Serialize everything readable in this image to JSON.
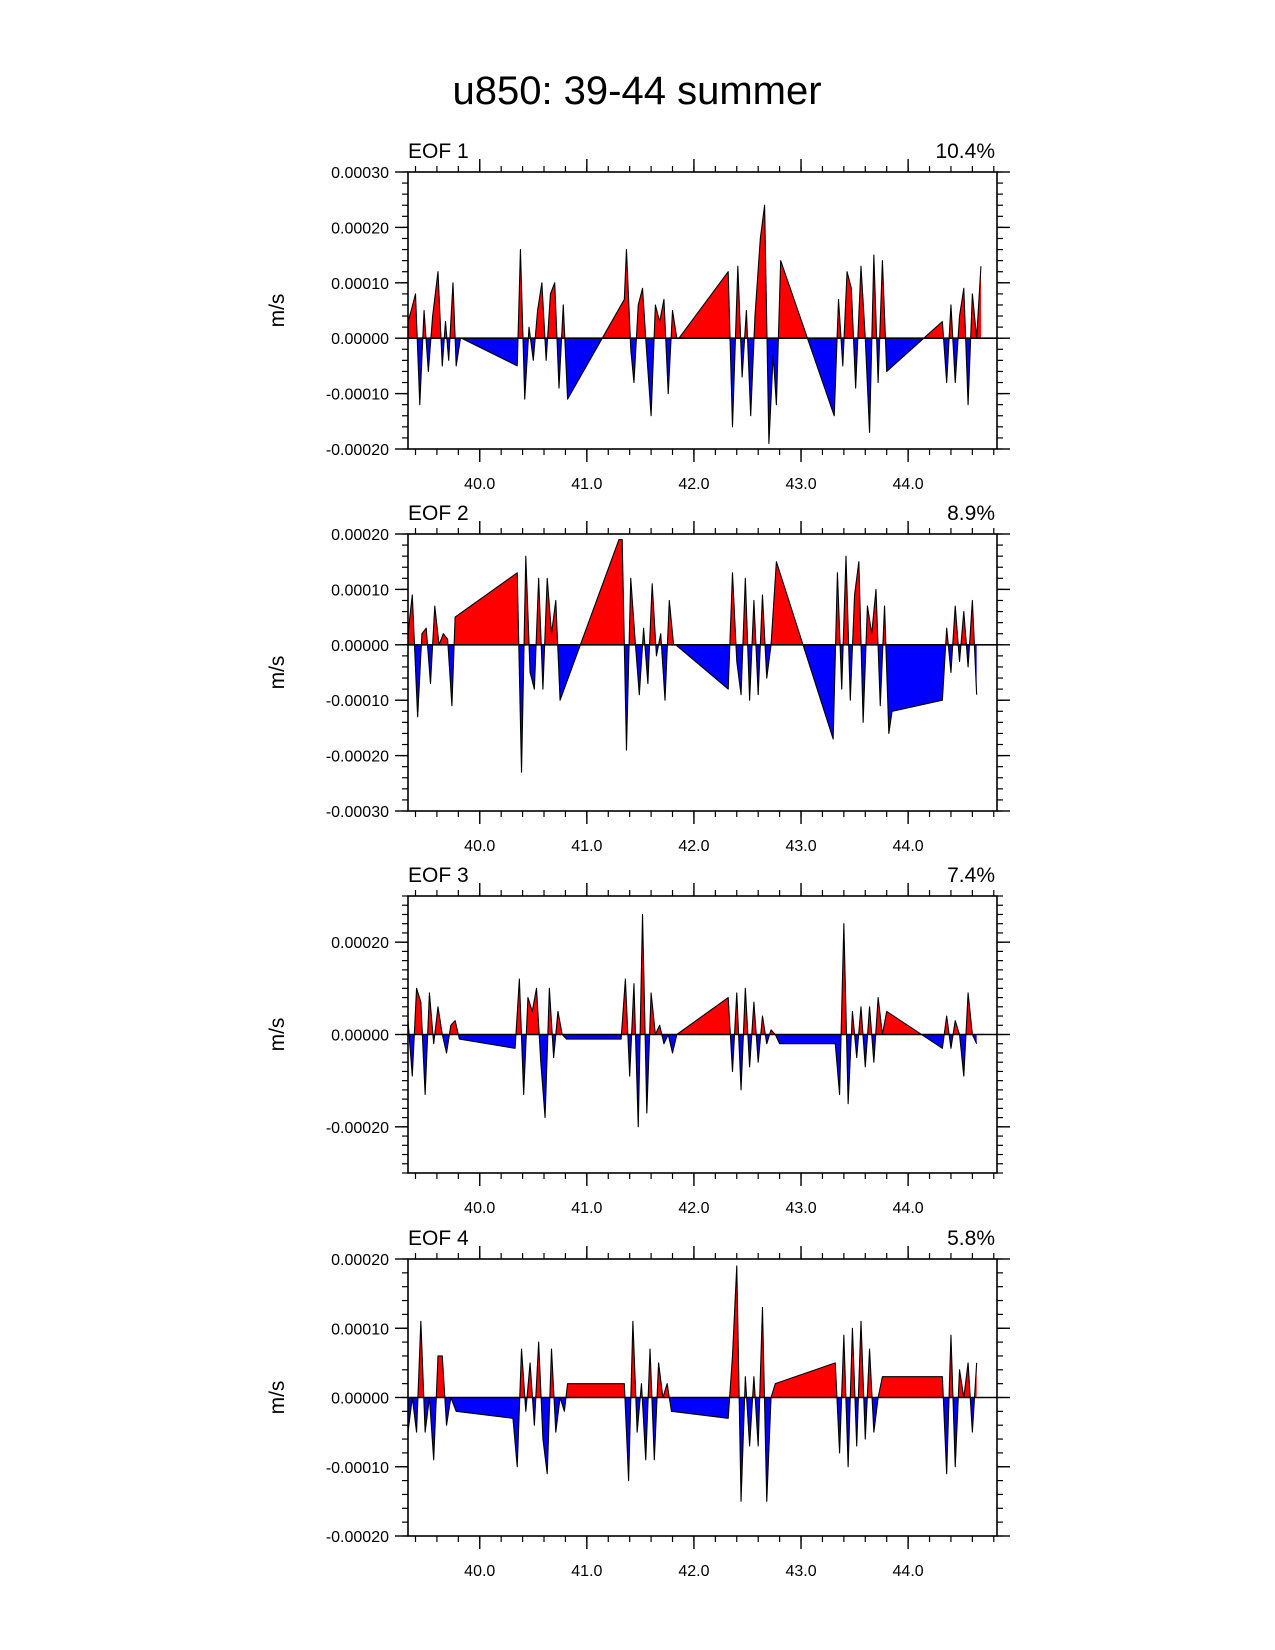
{
  "figure": {
    "title": "u850: 39-44 summer",
    "colors": {
      "positive": "#ff0000",
      "negative": "#0000ff",
      "outline": "#000000"
    }
  },
  "chart_data": [
    {
      "type": "area",
      "title": "EOF 1",
      "variance": "10.4%",
      "xlabel": "",
      "ylabel": "m/s",
      "xlim": [
        39.33,
        44.83
      ],
      "ylim": [
        -0.0002,
        0.0003
      ],
      "x_ticks": [
        40.0,
        41.0,
        42.0,
        43.0,
        44.0
      ],
      "x_tick_labels": [
        "40.0",
        "41.0",
        "42.0",
        "43.0",
        "44.0"
      ],
      "y_ticks": [
        -0.0002,
        -0.0001,
        0.0,
        0.0001,
        0.0002,
        0.0003
      ],
      "y_tick_labels": [
        "-0.00020",
        "-0.00010",
        "0.00000",
        "0.00010",
        "0.00020",
        "0.00030"
      ],
      "fill_above_zero": "red",
      "fill_below_zero": "blue",
      "points": [
        [
          39.33,
          3e-05
        ],
        [
          39.36,
          5e-05
        ],
        [
          39.4,
          8e-05
        ],
        [
          39.44,
          -0.00012
        ],
        [
          39.48,
          5e-05
        ],
        [
          39.52,
          -6e-05
        ],
        [
          39.56,
          4e-05
        ],
        [
          39.61,
          0.00012
        ],
        [
          39.65,
          -5e-05
        ],
        [
          39.68,
          3e-05
        ],
        [
          39.71,
          -4e-05
        ],
        [
          39.75,
          0.0001
        ],
        [
          39.78,
          -5e-05
        ],
        [
          39.82,
          0.0
        ],
        [
          39.83,
          0.0
        ],
        [
          40.35,
          -5e-05
        ],
        [
          40.38,
          0.00016
        ],
        [
          40.42,
          -0.00011
        ],
        [
          40.46,
          2e-05
        ],
        [
          40.5,
          -4e-05
        ],
        [
          40.54,
          5e-05
        ],
        [
          40.58,
          0.0001
        ],
        [
          40.62,
          -4e-05
        ],
        [
          40.66,
          8e-05
        ],
        [
          40.7,
          0.0001
        ],
        [
          40.74,
          -9e-05
        ],
        [
          40.78,
          6e-05
        ],
        [
          40.82,
          -0.00011
        ],
        [
          41.35,
          7e-05
        ],
        [
          41.37,
          0.00016
        ],
        [
          41.41,
          -2e-05
        ],
        [
          41.44,
          -8e-05
        ],
        [
          41.48,
          6e-05
        ],
        [
          41.52,
          9e-05
        ],
        [
          41.56,
          -3e-05
        ],
        [
          41.6,
          -0.00014
        ],
        [
          41.64,
          6e-05
        ],
        [
          41.68,
          3e-05
        ],
        [
          41.72,
          7e-05
        ],
        [
          41.76,
          -0.0001
        ],
        [
          41.8,
          5e-05
        ],
        [
          41.84,
          0.0
        ],
        [
          41.86,
          0.0
        ],
        [
          42.32,
          0.00012
        ],
        [
          42.36,
          -0.00016
        ],
        [
          42.41,
          0.00013
        ],
        [
          42.45,
          -7e-05
        ],
        [
          42.49,
          5e-05
        ],
        [
          42.53,
          -0.00014
        ],
        [
          42.57,
          4e-05
        ],
        [
          42.62,
          0.00018
        ],
        [
          42.66,
          0.00024
        ],
        [
          42.7,
          -0.00019
        ],
        [
          42.74,
          -3e-05
        ],
        [
          42.77,
          -0.00012
        ],
        [
          42.81,
          0.00014
        ],
        [
          43.31,
          -0.00014
        ],
        [
          43.35,
          7e-05
        ],
        [
          43.39,
          -5e-05
        ],
        [
          43.43,
          0.00012
        ],
        [
          43.47,
          9e-05
        ],
        [
          43.51,
          -9e-05
        ],
        [
          43.56,
          0.00013
        ],
        [
          43.6,
          0.0
        ],
        [
          43.64,
          -0.00017
        ],
        [
          43.68,
          0.00015
        ],
        [
          43.72,
          -8e-05
        ],
        [
          43.76,
          0.00014
        ],
        [
          43.8,
          -6e-05
        ],
        [
          44.32,
          3e-05
        ],
        [
          44.36,
          -8e-05
        ],
        [
          44.4,
          6e-05
        ],
        [
          44.44,
          -8e-05
        ],
        [
          44.48,
          4e-05
        ],
        [
          44.52,
          9e-05
        ],
        [
          44.56,
          -0.00012
        ],
        [
          44.6,
          8e-05
        ],
        [
          44.64,
          0.0
        ],
        [
          44.68,
          0.00013
        ]
      ]
    },
    {
      "type": "area",
      "title": "EOF 2",
      "variance": "8.9%",
      "xlabel": "",
      "ylabel": "m/s",
      "xlim": [
        39.33,
        44.83
      ],
      "ylim": [
        -0.0003,
        0.0002
      ],
      "x_ticks": [
        40.0,
        41.0,
        42.0,
        43.0,
        44.0
      ],
      "x_tick_labels": [
        "40.0",
        "41.0",
        "42.0",
        "43.0",
        "44.0"
      ],
      "y_ticks": [
        -0.0003,
        -0.0002,
        -0.0001,
        0.0,
        0.0001,
        0.0002
      ],
      "y_tick_labels": [
        "-0.00030",
        "-0.00020",
        "-0.00010",
        "0.00000",
        "0.00010",
        "0.00020"
      ],
      "fill_above_zero": "red",
      "fill_below_zero": "blue",
      "points": [
        [
          39.33,
          2e-05
        ],
        [
          39.37,
          9e-05
        ],
        [
          39.42,
          -0.00013
        ],
        [
          39.46,
          2e-05
        ],
        [
          39.5,
          3e-05
        ],
        [
          39.54,
          -7e-05
        ],
        [
          39.58,
          7e-05
        ],
        [
          39.62,
          0.0
        ],
        [
          39.66,
          2e-05
        ],
        [
          39.7,
          1e-05
        ],
        [
          39.74,
          -0.00011
        ],
        [
          39.77,
          5e-05
        ],
        [
          40.35,
          0.00013
        ],
        [
          40.39,
          -0.00023
        ],
        [
          40.43,
          0.00016
        ],
        [
          40.47,
          -5e-05
        ],
        [
          40.51,
          -8e-05
        ],
        [
          40.55,
          0.00012
        ],
        [
          40.59,
          -8e-05
        ],
        [
          40.63,
          0.00012
        ],
        [
          40.67,
          2e-05
        ],
        [
          40.71,
          8e-05
        ],
        [
          40.75,
          -0.0001
        ],
        [
          41.3,
          0.00019
        ],
        [
          41.33,
          0.00019
        ],
        [
          41.37,
          -0.00019
        ],
        [
          41.41,
          0.00012
        ],
        [
          41.45,
          1e-05
        ],
        [
          41.49,
          -9e-05
        ],
        [
          41.53,
          3e-05
        ],
        [
          41.57,
          -7e-05
        ],
        [
          41.61,
          0.00011
        ],
        [
          41.65,
          -2e-05
        ],
        [
          41.69,
          2e-05
        ],
        [
          41.73,
          -0.0001
        ],
        [
          41.77,
          8e-05
        ],
        [
          41.81,
          0.0
        ],
        [
          41.83,
          0.0
        ],
        [
          42.32,
          -8e-05
        ],
        [
          42.36,
          0.00013
        ],
        [
          42.4,
          -3e-05
        ],
        [
          42.44,
          -9e-05
        ],
        [
          42.48,
          0.00012
        ],
        [
          42.52,
          -0.0001
        ],
        [
          42.56,
          8e-05
        ],
        [
          42.6,
          -9e-05
        ],
        [
          42.64,
          9e-05
        ],
        [
          42.68,
          -6e-05
        ],
        [
          42.72,
          0.0
        ],
        [
          42.77,
          0.00015
        ],
        [
          43.3,
          -0.00017
        ],
        [
          43.34,
          0.00013
        ],
        [
          43.38,
          -8e-05
        ],
        [
          43.42,
          0.00016
        ],
        [
          43.46,
          -0.0001
        ],
        [
          43.5,
          9e-05
        ],
        [
          43.54,
          0.00015
        ],
        [
          43.58,
          -0.00014
        ],
        [
          43.62,
          7e-05
        ],
        [
          43.66,
          2e-05
        ],
        [
          43.7,
          0.0001
        ],
        [
          43.74,
          -0.00011
        ],
        [
          43.78,
          7e-05
        ],
        [
          43.82,
          -0.00016
        ],
        [
          43.85,
          -0.00012
        ],
        [
          44.32,
          -0.0001
        ],
        [
          44.36,
          3e-05
        ],
        [
          44.4,
          -5e-05
        ],
        [
          44.44,
          7e-05
        ],
        [
          44.48,
          -3e-05
        ],
        [
          44.52,
          6e-05
        ],
        [
          44.56,
          -4e-05
        ],
        [
          44.6,
          8e-05
        ],
        [
          44.64,
          -9e-05
        ]
      ]
    },
    {
      "type": "area",
      "title": "EOF 3",
      "variance": "7.4%",
      "xlabel": "",
      "ylabel": "m/s",
      "xlim": [
        39.33,
        44.83
      ],
      "ylim": [
        -0.0003,
        0.0003
      ],
      "x_ticks": [
        40.0,
        41.0,
        42.0,
        43.0,
        44.0
      ],
      "x_tick_labels": [
        "40.0",
        "41.0",
        "42.0",
        "43.0",
        "44.0"
      ],
      "y_ticks": [
        -0.0002,
        0.0,
        0.0002
      ],
      "y_tick_labels": [
        "-0.00020",
        "0.00000",
        "0.00020"
      ],
      "fill_above_zero": "red",
      "fill_below_zero": "blue",
      "points": [
        [
          39.33,
          3e-05
        ],
        [
          39.37,
          -9e-05
        ],
        [
          39.41,
          0.0001
        ],
        [
          39.45,
          7e-05
        ],
        [
          39.49,
          -0.00013
        ],
        [
          39.53,
          9e-05
        ],
        [
          39.57,
          -2e-05
        ],
        [
          39.61,
          6e-05
        ],
        [
          39.65,
          0.0
        ],
        [
          39.69,
          -4e-05
        ],
        [
          39.73,
          2e-05
        ],
        [
          39.77,
          3e-05
        ],
        [
          39.81,
          -1e-05
        ],
        [
          40.33,
          -3e-05
        ],
        [
          40.37,
          0.00012
        ],
        [
          40.41,
          -0.00013
        ],
        [
          40.45,
          8e-05
        ],
        [
          40.49,
          5e-05
        ],
        [
          40.53,
          0.0001
        ],
        [
          40.57,
          -6e-05
        ],
        [
          40.61,
          -0.00018
        ],
        [
          40.65,
          0.0001
        ],
        [
          40.69,
          -5e-05
        ],
        [
          40.73,
          5e-05
        ],
        [
          40.77,
          0.0
        ],
        [
          40.81,
          -1e-05
        ],
        [
          41.32,
          -1e-05
        ],
        [
          41.36,
          0.00012
        ],
        [
          41.4,
          -9e-05
        ],
        [
          41.44,
          0.00011
        ],
        [
          41.48,
          -0.0002
        ],
        [
          41.52,
          0.00026
        ],
        [
          41.56,
          -0.00017
        ],
        [
          41.6,
          9e-05
        ],
        [
          41.64,
          0.0
        ],
        [
          41.68,
          2e-05
        ],
        [
          41.72,
          -2e-05
        ],
        [
          41.76,
          0.0
        ],
        [
          41.8,
          -4e-05
        ],
        [
          41.84,
          0.0
        ],
        [
          42.32,
          8e-05
        ],
        [
          42.36,
          -8e-05
        ],
        [
          42.4,
          9e-05
        ],
        [
          42.44,
          -0.00012
        ],
        [
          42.48,
          0.0001
        ],
        [
          42.52,
          -7e-05
        ],
        [
          42.56,
          7e-05
        ],
        [
          42.6,
          -6e-05
        ],
        [
          42.64,
          4e-05
        ],
        [
          42.68,
          -2e-05
        ],
        [
          42.72,
          1e-05
        ],
        [
          42.76,
          0.0
        ],
        [
          42.8,
          -2e-05
        ],
        [
          43.32,
          -2e-05
        ],
        [
          43.36,
          -0.00013
        ],
        [
          43.4,
          0.00024
        ],
        [
          43.44,
          -0.00015
        ],
        [
          43.48,
          5e-05
        ],
        [
          43.52,
          -5e-05
        ],
        [
          43.56,
          6e-05
        ],
        [
          43.6,
          -7e-05
        ],
        [
          43.64,
          6e-05
        ],
        [
          43.68,
          -6e-05
        ],
        [
          43.72,
          8e-05
        ],
        [
          43.76,
          0.0
        ],
        [
          43.8,
          5e-05
        ],
        [
          44.32,
          -3e-05
        ],
        [
          44.36,
          4e-05
        ],
        [
          44.4,
          -3e-05
        ],
        [
          44.44,
          3e-05
        ],
        [
          44.48,
          0.0
        ],
        [
          44.52,
          -9e-05
        ],
        [
          44.56,
          9e-05
        ],
        [
          44.6,
          0.0
        ],
        [
          44.64,
          -2e-05
        ]
      ]
    },
    {
      "type": "area",
      "title": "EOF 4",
      "variance": "5.8%",
      "xlabel": "",
      "ylabel": "m/s",
      "xlim": [
        39.33,
        44.83
      ],
      "ylim": [
        -0.0002,
        0.0002
      ],
      "x_ticks": [
        40.0,
        41.0,
        42.0,
        43.0,
        44.0
      ],
      "x_tick_labels": [
        "40.0",
        "41.0",
        "42.0",
        "43.0",
        "44.0"
      ],
      "y_ticks": [
        -0.0002,
        -0.0001,
        0.0,
        0.0001,
        0.0002
      ],
      "y_tick_labels": [
        "-0.00020",
        "-0.00010",
        "0.00000",
        "0.00010",
        "0.00020"
      ],
      "fill_above_zero": "red",
      "fill_below_zero": "blue",
      "points": [
        [
          39.33,
          -5e-05
        ],
        [
          39.37,
          0.0
        ],
        [
          39.41,
          -5e-05
        ],
        [
          39.45,
          0.00011
        ],
        [
          39.49,
          -5e-05
        ],
        [
          39.53,
          0.0
        ],
        [
          39.57,
          -9e-05
        ],
        [
          39.61,
          6e-05
        ],
        [
          39.65,
          6e-05
        ],
        [
          39.69,
          -4e-05
        ],
        [
          39.73,
          0.0
        ],
        [
          39.78,
          -2e-05
        ],
        [
          40.31,
          -3e-05
        ],
        [
          40.35,
          -0.0001
        ],
        [
          40.39,
          7e-05
        ],
        [
          40.43,
          -2e-05
        ],
        [
          40.47,
          5e-05
        ],
        [
          40.51,
          -4e-05
        ],
        [
          40.55,
          8e-05
        ],
        [
          40.59,
          -6e-05
        ],
        [
          40.63,
          -0.00011
        ],
        [
          40.67,
          7e-05
        ],
        [
          40.71,
          -5e-05
        ],
        [
          40.75,
          0.0
        ],
        [
          40.79,
          -2e-05
        ],
        [
          40.82,
          2e-05
        ],
        [
          41.35,
          2e-05
        ],
        [
          41.39,
          -0.00012
        ],
        [
          41.43,
          0.00011
        ],
        [
          41.47,
          -5e-05
        ],
        [
          41.51,
          2e-05
        ],
        [
          41.55,
          -9e-05
        ],
        [
          41.59,
          7e-05
        ],
        [
          41.63,
          -9e-05
        ],
        [
          41.67,
          5e-05
        ],
        [
          41.71,
          0.0
        ],
        [
          41.75,
          2e-05
        ],
        [
          41.79,
          -2e-05
        ],
        [
          42.32,
          -3e-05
        ],
        [
          42.36,
          6e-05
        ],
        [
          42.4,
          0.00019
        ],
        [
          42.44,
          -0.00015
        ],
        [
          42.48,
          3e-05
        ],
        [
          42.52,
          -7e-05
        ],
        [
          42.56,
          3e-05
        ],
        [
          42.6,
          -7e-05
        ],
        [
          42.64,
          0.00013
        ],
        [
          42.68,
          -0.00015
        ],
        [
          42.72,
          0.0
        ],
        [
          42.76,
          2e-05
        ],
        [
          43.32,
          5e-05
        ],
        [
          43.36,
          -8e-05
        ],
        [
          43.4,
          9e-05
        ],
        [
          43.44,
          -0.0001
        ],
        [
          43.48,
          0.0001
        ],
        [
          43.52,
          -7e-05
        ],
        [
          43.56,
          0.00011
        ],
        [
          43.6,
          -6e-05
        ],
        [
          43.64,
          7e-05
        ],
        [
          43.68,
          -5e-05
        ],
        [
          43.72,
          0.0
        ],
        [
          43.76,
          3e-05
        ],
        [
          44.32,
          3e-05
        ],
        [
          44.36,
          -0.00011
        ],
        [
          44.4,
          9e-05
        ],
        [
          44.44,
          -0.0001
        ],
        [
          44.48,
          4e-05
        ],
        [
          44.52,
          0.0
        ],
        [
          44.56,
          5e-05
        ],
        [
          44.6,
          -5e-05
        ],
        [
          44.64,
          5e-05
        ]
      ]
    }
  ]
}
